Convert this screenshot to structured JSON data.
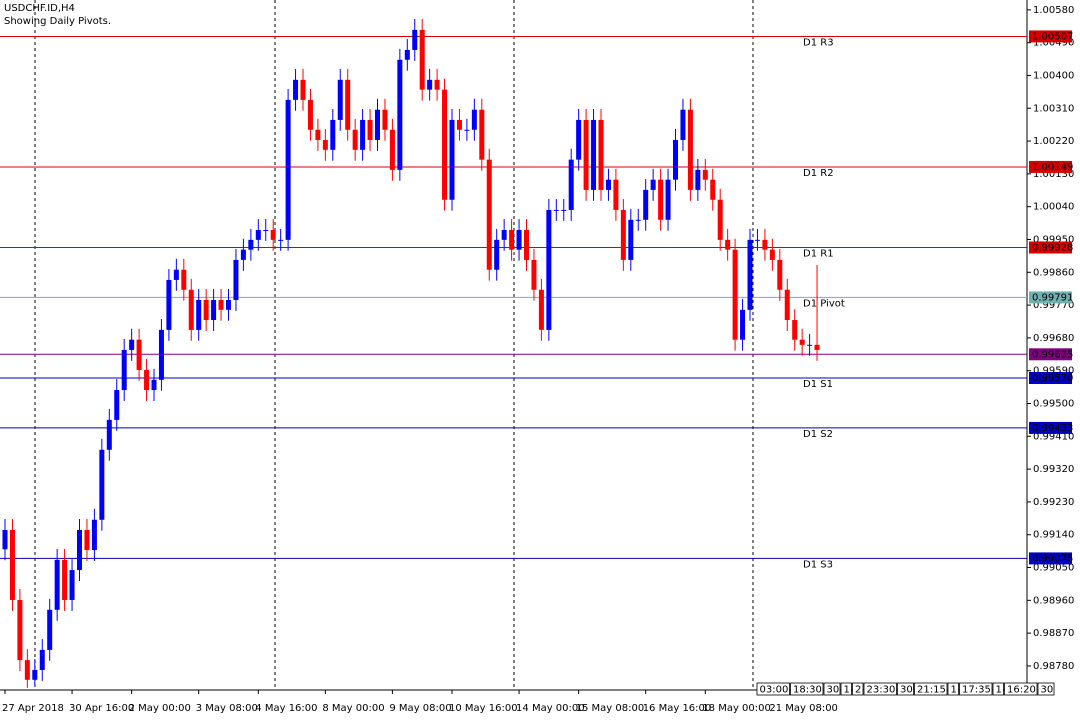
{
  "chart_data": {
    "type": "candlestick",
    "title": "USDCHF.ID,H4",
    "subtitle": "Showing Daily Pivots.",
    "up_color": "#0000ff",
    "down_color": "#ff0000",
    "categories": [
      "27 Apr 2018",
      null,
      null,
      null,
      null,
      null,
      null,
      null,
      null,
      "30 Apr 16:00",
      null,
      null,
      null,
      null,
      null,
      null,
      null,
      "2 May 00:00",
      null,
      null,
      null,
      null,
      null,
      null,
      null,
      null,
      "3 May 08:00",
      null,
      null,
      null,
      null,
      null,
      null,
      null,
      "4 May 16:00",
      null,
      null,
      null,
      null,
      null,
      null,
      null,
      null,
      "8 May 00:00",
      null,
      null,
      null,
      null,
      null,
      null,
      null,
      null,
      "9 May 08:00",
      null,
      null,
      null,
      null,
      null,
      null,
      null,
      "10 May 16:00",
      null,
      null,
      null,
      null,
      null,
      null,
      null,
      null,
      "14 May 00:00",
      null,
      null,
      null,
      null,
      null,
      null,
      null,
      "15 May 08:00",
      null,
      null,
      null,
      null,
      null,
      null,
      null,
      null,
      "16 May 16:00",
      null,
      null,
      null,
      null,
      null,
      null,
      null,
      "18 May 00:00",
      null,
      null,
      null,
      null,
      null,
      null,
      null,
      null,
      "21 May 08:00",
      null,
      null,
      null,
      null,
      null,
      null
    ],
    "open": [
      0.991,
      0.99153,
      0.98961,
      0.98796,
      0.98742,
      0.98769,
      0.98824,
      0.98934,
      0.99071,
      0.98961,
      0.99043,
      0.99153,
      0.99098,
      0.99181,
      0.99373,
      0.99455,
      0.99537,
      0.99647,
      0.99675,
      0.99592,
      0.99537,
      0.99565,
      0.99702,
      0.99839,
      0.99867,
      0.99812,
      0.99702,
      0.99784,
      0.99729,
      0.99784,
      0.99757,
      0.99784,
      0.99894,
      0.99922,
      0.99949,
      0.99976,
      0.99976,
      0.99949,
      0.99949,
      1.00333,
      1.00388,
      1.00333,
      1.00251,
      1.00223,
      1.00196,
      1.00278,
      1.00388,
      1.00251,
      1.00196,
      1.00278,
      1.00223,
      1.00306,
      1.00251,
      1.00141,
      1.00443,
      1.0047,
      1.00525,
      1.00361,
      1.00388,
      1.00361,
      1.00059,
      1.00278,
      1.00251,
      1.00251,
      1.00306,
      1.00169,
      0.99867,
      0.99949,
      0.99976,
      0.99922,
      0.99976,
      0.99894,
      0.99812,
      0.99702,
      1.00031,
      1.00031,
      1.00031,
      1.00169,
      1.00278,
      1.00086,
      1.00278,
      1.00086,
      1.00114,
      1.00031,
      0.99894,
      1.00004,
      1.00004,
      1.00086,
      1.00114,
      1.00004,
      1.00114,
      1.00223,
      1.00306,
      1.00086,
      1.00141,
      1.00114,
      1.00059,
      0.99949,
      0.99922,
      0.99675,
      0.99757,
      0.99949,
      0.99949,
      0.99922,
      0.99894,
      0.99812,
      0.99729,
      0.99675,
      0.99661,
      0.99661
    ],
    "high": [
      0.99183,
      0.99183,
      0.98991,
      0.98826,
      0.98799,
      0.98854,
      0.98964,
      0.99101,
      0.99101,
      0.99073,
      0.99183,
      0.99183,
      0.99211,
      0.99403,
      0.99485,
      0.99567,
      0.99677,
      0.99705,
      0.99705,
      0.99622,
      0.99595,
      0.99732,
      0.99869,
      0.99897,
      0.99897,
      0.99842,
      0.99814,
      0.99814,
      0.99814,
      0.99814,
      0.99814,
      0.99924,
      0.99952,
      0.99979,
      1.00006,
      1.00006,
      1.00006,
      0.99979,
      1.00363,
      1.00418,
      1.00418,
      1.00363,
      1.00281,
      1.00253,
      1.00308,
      1.00418,
      1.00418,
      1.00281,
      1.00308,
      1.00308,
      1.00336,
      1.00336,
      1.00281,
      1.00473,
      1.005,
      1.00555,
      1.00555,
      1.00418,
      1.00418,
      1.00391,
      1.00308,
      1.00308,
      1.00281,
      1.00336,
      1.00336,
      1.00199,
      0.99979,
      1.00006,
      1.00006,
      1.00006,
      1.00006,
      0.99924,
      0.99842,
      1.00061,
      1.00061,
      1.00061,
      1.00199,
      1.00308,
      1.00308,
      1.00308,
      1.00308,
      1.00144,
      1.00144,
      1.00061,
      1.00034,
      1.00034,
      1.00116,
      1.00144,
      1.00144,
      1.00144,
      1.00253,
      1.00336,
      1.00336,
      1.00171,
      1.00171,
      1.00144,
      1.00089,
      0.99979,
      0.99952,
      0.99787,
      0.99979,
      0.99979,
      0.99979,
      0.99952,
      0.99924,
      0.99842,
      0.99759,
      0.99705,
      0.99691,
      0.9988
    ],
    "low": [
      0.9907,
      0.98931,
      0.98766,
      0.9872,
      0.98725,
      0.98739,
      0.98794,
      0.98904,
      0.98931,
      0.98931,
      0.99013,
      0.99068,
      0.99068,
      0.99151,
      0.99343,
      0.99425,
      0.99507,
      0.99617,
      0.99562,
      0.99507,
      0.99507,
      0.99535,
      0.99672,
      0.99809,
      0.99782,
      0.99672,
      0.99672,
      0.99699,
      0.99699,
      0.99727,
      0.99727,
      0.99754,
      0.99864,
      0.99892,
      0.99919,
      0.99946,
      0.99919,
      0.99919,
      0.99919,
      1.00303,
      1.00303,
      1.00221,
      1.00193,
      1.00166,
      1.00166,
      1.00248,
      1.00221,
      1.00166,
      1.00166,
      1.00193,
      1.00193,
      1.00221,
      1.00111,
      1.00111,
      1.00413,
      1.0044,
      1.00331,
      1.00331,
      1.00331,
      1.00029,
      1.00029,
      1.00221,
      1.00221,
      1.00221,
      1.00139,
      0.99837,
      0.99837,
      0.99919,
      0.99892,
      0.99892,
      0.99864,
      0.99782,
      0.99672,
      0.99672,
      1.00001,
      1.00001,
      1.00001,
      1.00139,
      1.00056,
      1.00056,
      1.00056,
      1.00056,
      1.00001,
      0.99864,
      0.99864,
      0.99974,
      0.99974,
      1.00056,
      0.99974,
      0.99974,
      1.00084,
      1.00193,
      1.00056,
      1.00056,
      1.00084,
      1.00029,
      0.99919,
      0.99892,
      0.99645,
      0.99645,
      0.99727,
      0.99919,
      0.99892,
      0.99864,
      0.99782,
      0.99699,
      0.99645,
      0.99631,
      0.99631,
      0.99617
    ],
    "close": [
      0.99153,
      0.98961,
      0.98796,
      0.98742,
      0.98769,
      0.98824,
      0.98934,
      0.99071,
      0.98961,
      0.99043,
      0.99153,
      0.99098,
      0.99181,
      0.99373,
      0.99455,
      0.99537,
      0.99647,
      0.99675,
      0.99592,
      0.99537,
      0.99565,
      0.99702,
      0.99839,
      0.99867,
      0.99812,
      0.99702,
      0.99784,
      0.99729,
      0.99784,
      0.99757,
      0.99784,
      0.99894,
      0.99922,
      0.99949,
      0.99976,
      0.99976,
      0.99949,
      0.99949,
      1.00333,
      1.00388,
      1.00333,
      1.00251,
      1.00223,
      1.00196,
      1.00278,
      1.00388,
      1.00251,
      1.00196,
      1.00278,
      1.00223,
      1.00306,
      1.00251,
      1.00141,
      1.00443,
      1.0047,
      1.00525,
      1.00361,
      1.00388,
      1.00361,
      1.00059,
      1.00278,
      1.00251,
      1.00251,
      1.00306,
      1.00169,
      0.99867,
      0.99949,
      0.99976,
      0.99922,
      0.99976,
      0.99894,
      0.99812,
      0.99702,
      1.00031,
      1.00031,
      1.00031,
      1.00169,
      1.00278,
      1.00086,
      1.00278,
      1.00086,
      1.00114,
      1.00031,
      0.99894,
      1.00004,
      1.00004,
      1.00086,
      1.00114,
      1.00004,
      1.00114,
      1.00223,
      1.00306,
      1.00086,
      1.00141,
      1.00114,
      1.00059,
      0.99949,
      0.99922,
      0.99675,
      0.99757,
      0.99949,
      0.99949,
      0.99922,
      0.99894,
      0.99812,
      0.99729,
      0.99675,
      0.99661,
      0.99661,
      0.99647
    ],
    "ylim": [
      0.98714,
      1.00607
    ],
    "yticks": [
      {
        "value": 0.9878,
        "label": "0.98780"
      },
      {
        "value": 0.9887,
        "label": "0.98870"
      },
      {
        "value": 0.9896,
        "label": "0.98960"
      },
      {
        "value": 0.9905,
        "label": "0.99050"
      },
      {
        "value": 0.9914,
        "label": "0.99140"
      },
      {
        "value": 0.9923,
        "label": "0.99230"
      },
      {
        "value": 0.9932,
        "label": "0.99320"
      },
      {
        "value": 0.9941,
        "label": "0.99410"
      },
      {
        "value": 0.995,
        "label": "0.99500"
      },
      {
        "value": 0.9959,
        "label": "0.99590"
      },
      {
        "value": 0.9968,
        "label": "0.99680"
      },
      {
        "value": 0.9977,
        "label": "0.99770"
      },
      {
        "value": 0.9986,
        "label": "0.99860"
      },
      {
        "value": 0.9995,
        "label": "0.99950"
      },
      {
        "value": 1.0004,
        "label": "1.00040"
      },
      {
        "value": 1.0013,
        "label": "1.00130"
      },
      {
        "value": 1.0022,
        "label": "1.00220"
      },
      {
        "value": 1.0031,
        "label": "1.00310"
      },
      {
        "value": 1.004,
        "label": "1.00400"
      },
      {
        "value": 1.0049,
        "label": "1.00490"
      },
      {
        "value": 1.0058,
        "label": "1.00580"
      }
    ],
    "levels": [
      {
        "name": "D1 R3",
        "value": 1.00507,
        "label": "1.00507",
        "color": "#d40000"
      },
      {
        "name": "D1 R2",
        "value": 1.00149,
        "label": "1.00149",
        "color": "#d40000"
      },
      {
        "name": "D1 R1",
        "value": 0.99928,
        "label": "0.99928",
        "color": "#d40000"
      },
      {
        "name": "D1 Pivot",
        "value": 0.99791,
        "label": "0.99791",
        "color": "#6fb0b0"
      },
      {
        "value": 0.99635,
        "label": "0.99635",
        "color": "#800080"
      },
      {
        "name": "D1 S1",
        "value": 0.9957,
        "label": "0.99570",
        "color": "#0000c0"
      },
      {
        "name": "D1 S2",
        "value": 0.99433,
        "label": "0.99433",
        "color": "#0000c0"
      },
      {
        "name": "D1 S3",
        "value": 0.99075,
        "label": "0.99075",
        "color": "#0000c0"
      }
    ],
    "time_buttons": [
      "03:00",
      "18:30",
      "30",
      "1",
      "2",
      "23:30",
      "30",
      "21:15",
      "1",
      "17:35",
      "1",
      "16:20",
      "30"
    ]
  }
}
